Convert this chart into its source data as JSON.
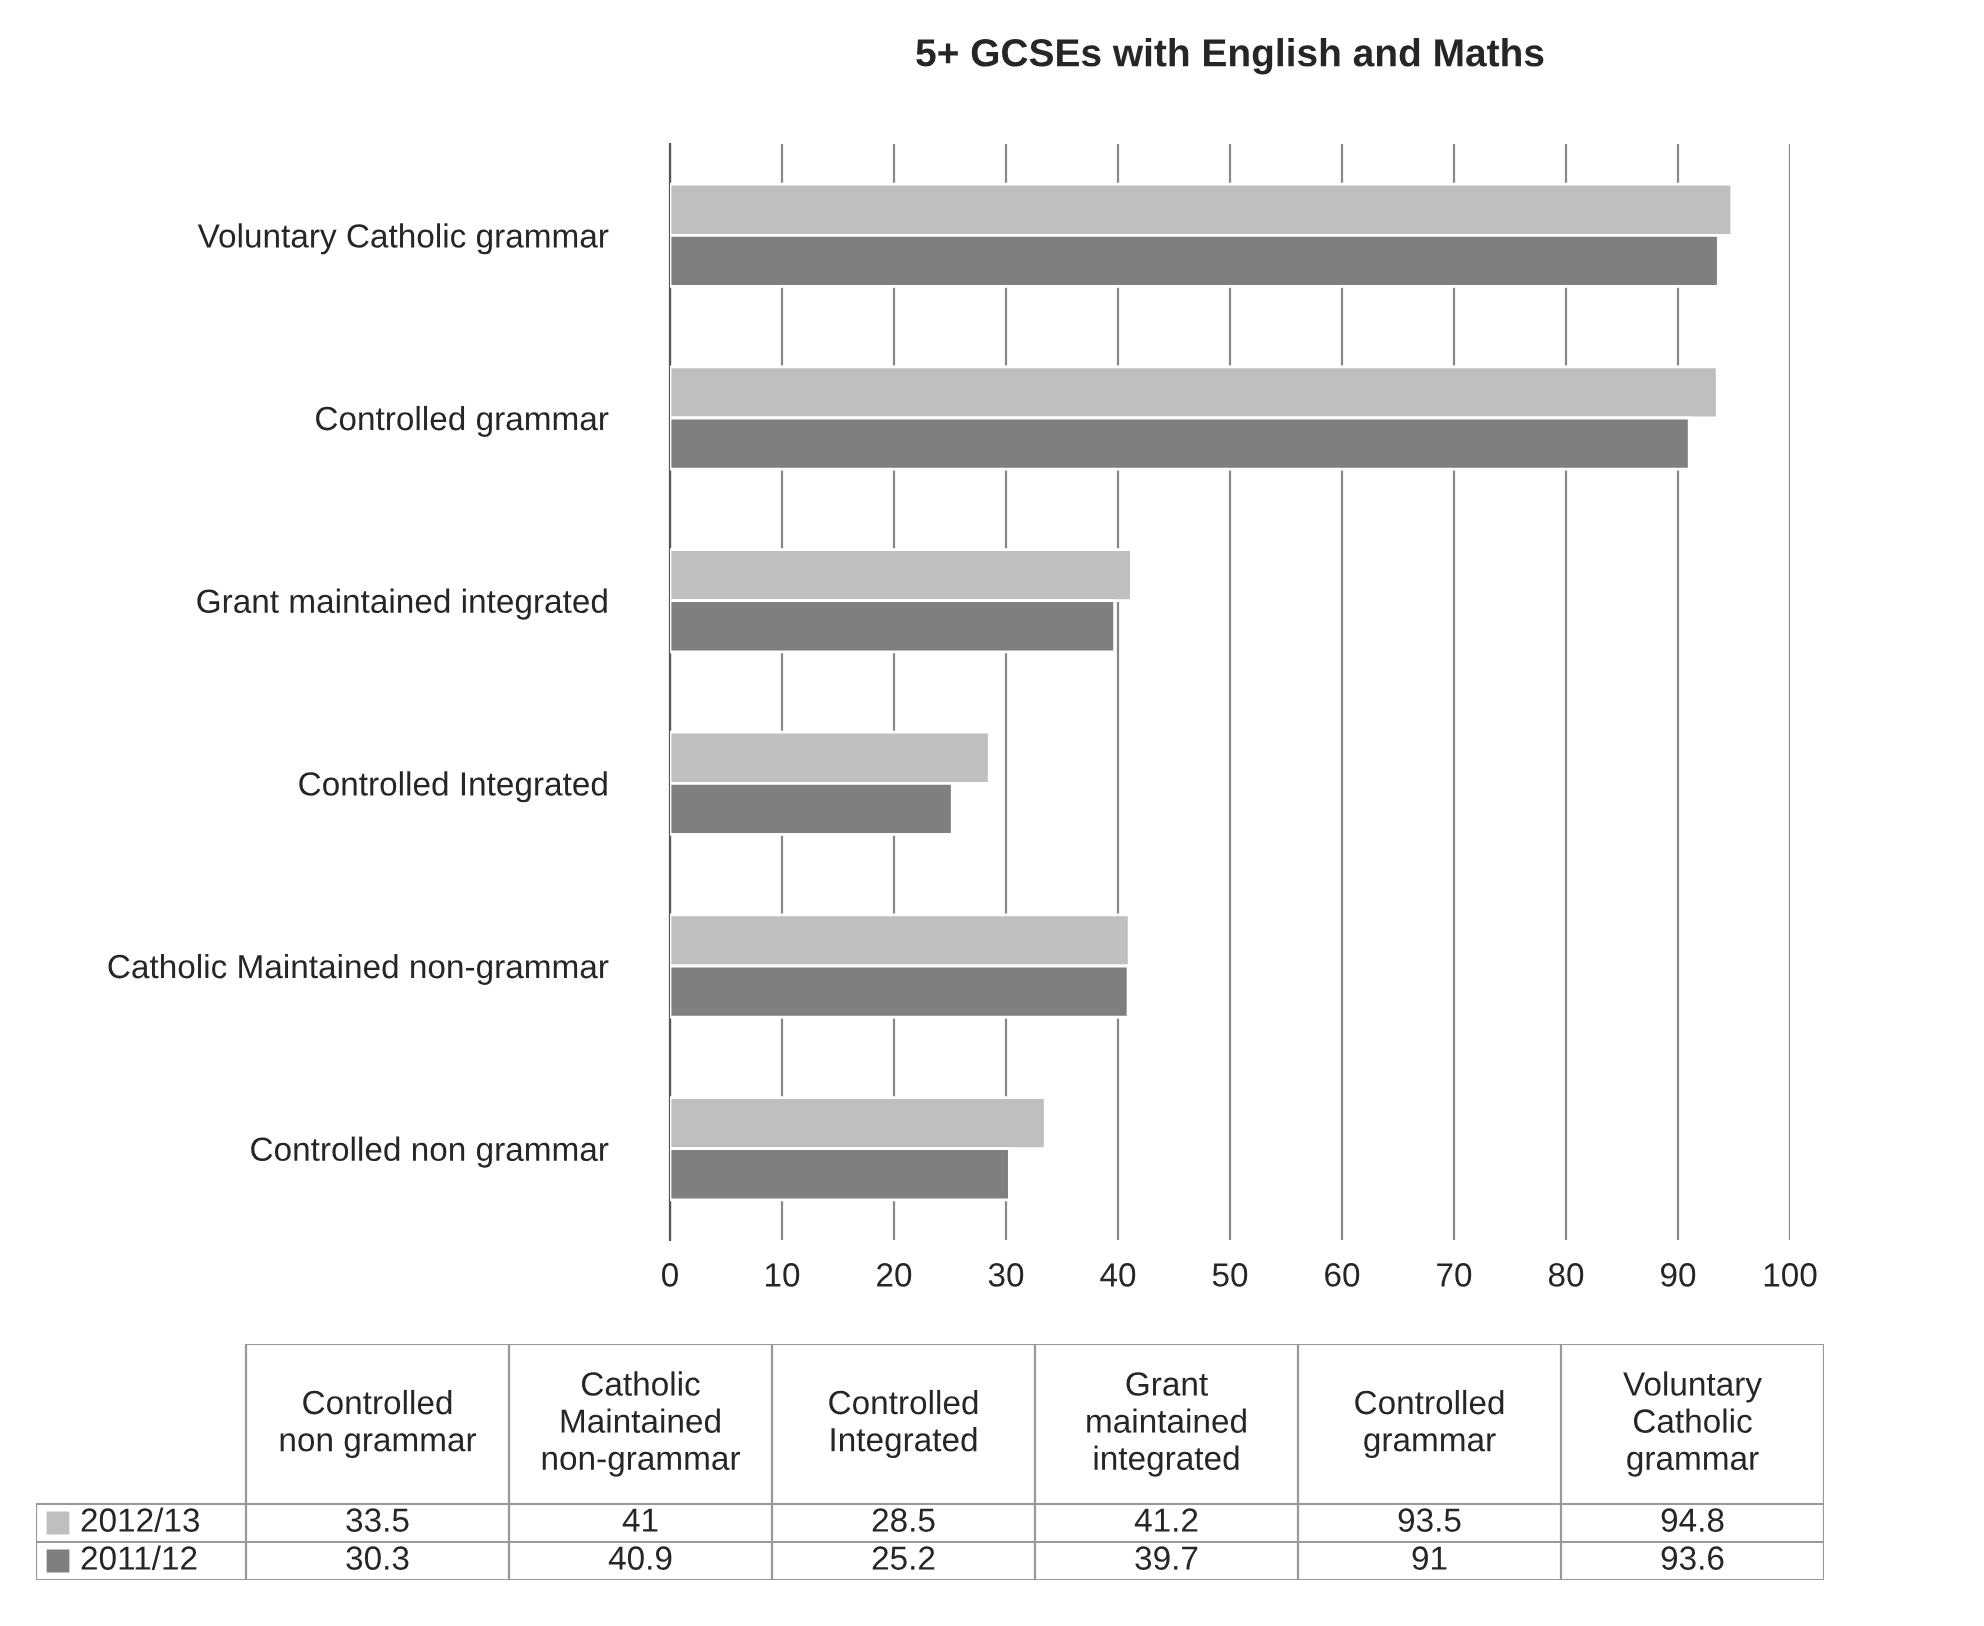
{
  "chart_data": [
    {
      "type": "bar",
      "orientation": "horizontal",
      "title": "5+ GCSEs with English and Maths",
      "categories": [
        "Voluntary Catholic grammar",
        "Controlled grammar",
        "Grant maintained integrated",
        "Controlled Integrated",
        "Catholic Maintained non-grammar",
        "Controlled non grammar"
      ],
      "series": [
        {
          "color": "#bfbfbf",
          "values": [
            94.8,
            93.5,
            41.2,
            28.5,
            41,
            33.5
          ]
        },
        {
          "color": "#7f7f7f",
          "values": [
            93.6,
            91,
            39.7,
            25.2,
            40.9,
            30.3
          ]
        }
      ],
      "xlim": [
        0,
        100
      ],
      "xticks": [
        0,
        10,
        20,
        30,
        40,
        50,
        60,
        70,
        80,
        90,
        100
      ],
      "grid": "x"
    },
    {
      "type": "other",
      "categories": [
        "Controlled non grammar",
        "Catholic Maintained non-grammar",
        "Controlled Integrated",
        "Grant maintained integrated",
        "Controlled grammar",
        "Voluntary Catholic grammar"
      ],
      "series": [
        {
          "name": "2012/13",
          "color": "#bfbfbf",
          "values": [
            33.5,
            41,
            28.5,
            41.2,
            93.5,
            94.8
          ]
        },
        {
          "name": "2011/12",
          "color": "#7f7f7f",
          "values": [
            30.3,
            40.9,
            25.2,
            39.7,
            91,
            93.6
          ]
        }
      ],
      "legend": "left",
      "data_labels": true
    }
  ]
}
